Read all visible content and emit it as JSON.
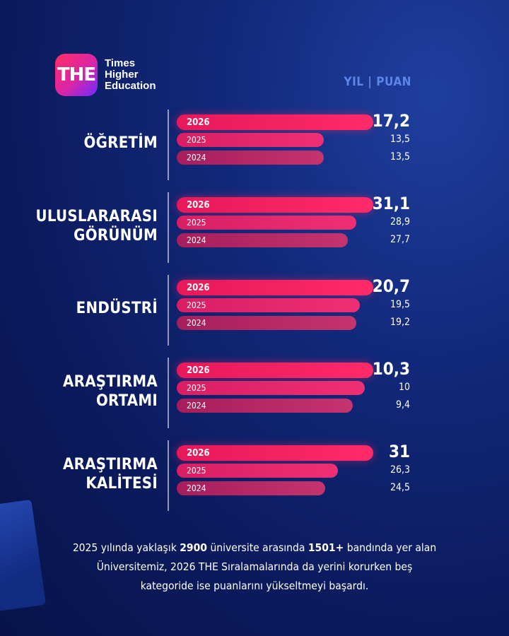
{
  "logo": {
    "mark": "THE",
    "lines": [
      "Times",
      "Higher",
      "Education"
    ]
  },
  "legend_header": "YIL | PUAN",
  "chart_data": {
    "type": "bar",
    "orientation": "horizontal",
    "legend_header": "YIL | PUAN",
    "series_names": [
      "2026",
      "2025",
      "2024"
    ],
    "groups": [
      {
        "label_lines": [
          "ÖĞRETİM"
        ],
        "bars": [
          {
            "year": "2026",
            "value": 17.2,
            "label": "17,2"
          },
          {
            "year": "2025",
            "value": 13.5,
            "label": "13,5"
          },
          {
            "year": "2024",
            "value": 13.5,
            "label": "13,5"
          }
        ]
      },
      {
        "label_lines": [
          "ULUSLARARASI",
          "GÖRÜNÜM"
        ],
        "bars": [
          {
            "year": "2026",
            "value": 31.1,
            "label": "31,1"
          },
          {
            "year": "2025",
            "value": 28.9,
            "label": "28,9"
          },
          {
            "year": "2024",
            "value": 27.7,
            "label": "27,7"
          }
        ]
      },
      {
        "label_lines": [
          "ENDÜSTRİ"
        ],
        "bars": [
          {
            "year": "2026",
            "value": 20.7,
            "label": "20,7"
          },
          {
            "year": "2025",
            "value": 19.5,
            "label": "19,5"
          },
          {
            "year": "2024",
            "value": 19.2,
            "label": "19,2"
          }
        ]
      },
      {
        "label_lines": [
          "ARAŞTIRMA",
          "ORTAMI"
        ],
        "bars": [
          {
            "year": "2026",
            "value": 10.3,
            "label": "10,3"
          },
          {
            "year": "2025",
            "value": 10,
            "label": "10"
          },
          {
            "year": "2024",
            "value": 9.4,
            "label": "9,4"
          }
        ]
      },
      {
        "label_lines": [
          "ARAŞTIRMA",
          "KALİTESİ"
        ],
        "bars": [
          {
            "year": "2026",
            "value": 31,
            "label": "31"
          },
          {
            "year": "2025",
            "value": 26.3,
            "label": "26,3"
          },
          {
            "year": "2024",
            "value": 24.5,
            "label": "24,5"
          }
        ]
      }
    ],
    "colors": {
      "2026": "#ff2a6a",
      "2025": "#ef2f74",
      "2024": "#c4346e"
    }
  },
  "footer": {
    "segments": [
      {
        "text": "2025 yılında yaklaşık ",
        "bold": false
      },
      {
        "text": "2900",
        "bold": true
      },
      {
        "text": " üniversite arasında ",
        "bold": false
      },
      {
        "text": "1501+",
        "bold": true
      },
      {
        "text": " bandında yer alan Üniversitemiz, 2026 THE Sıralamalarında da yerini korurken beş kategoride ise puanlarını yükseltmeyi başardı.",
        "bold": false
      }
    ]
  }
}
